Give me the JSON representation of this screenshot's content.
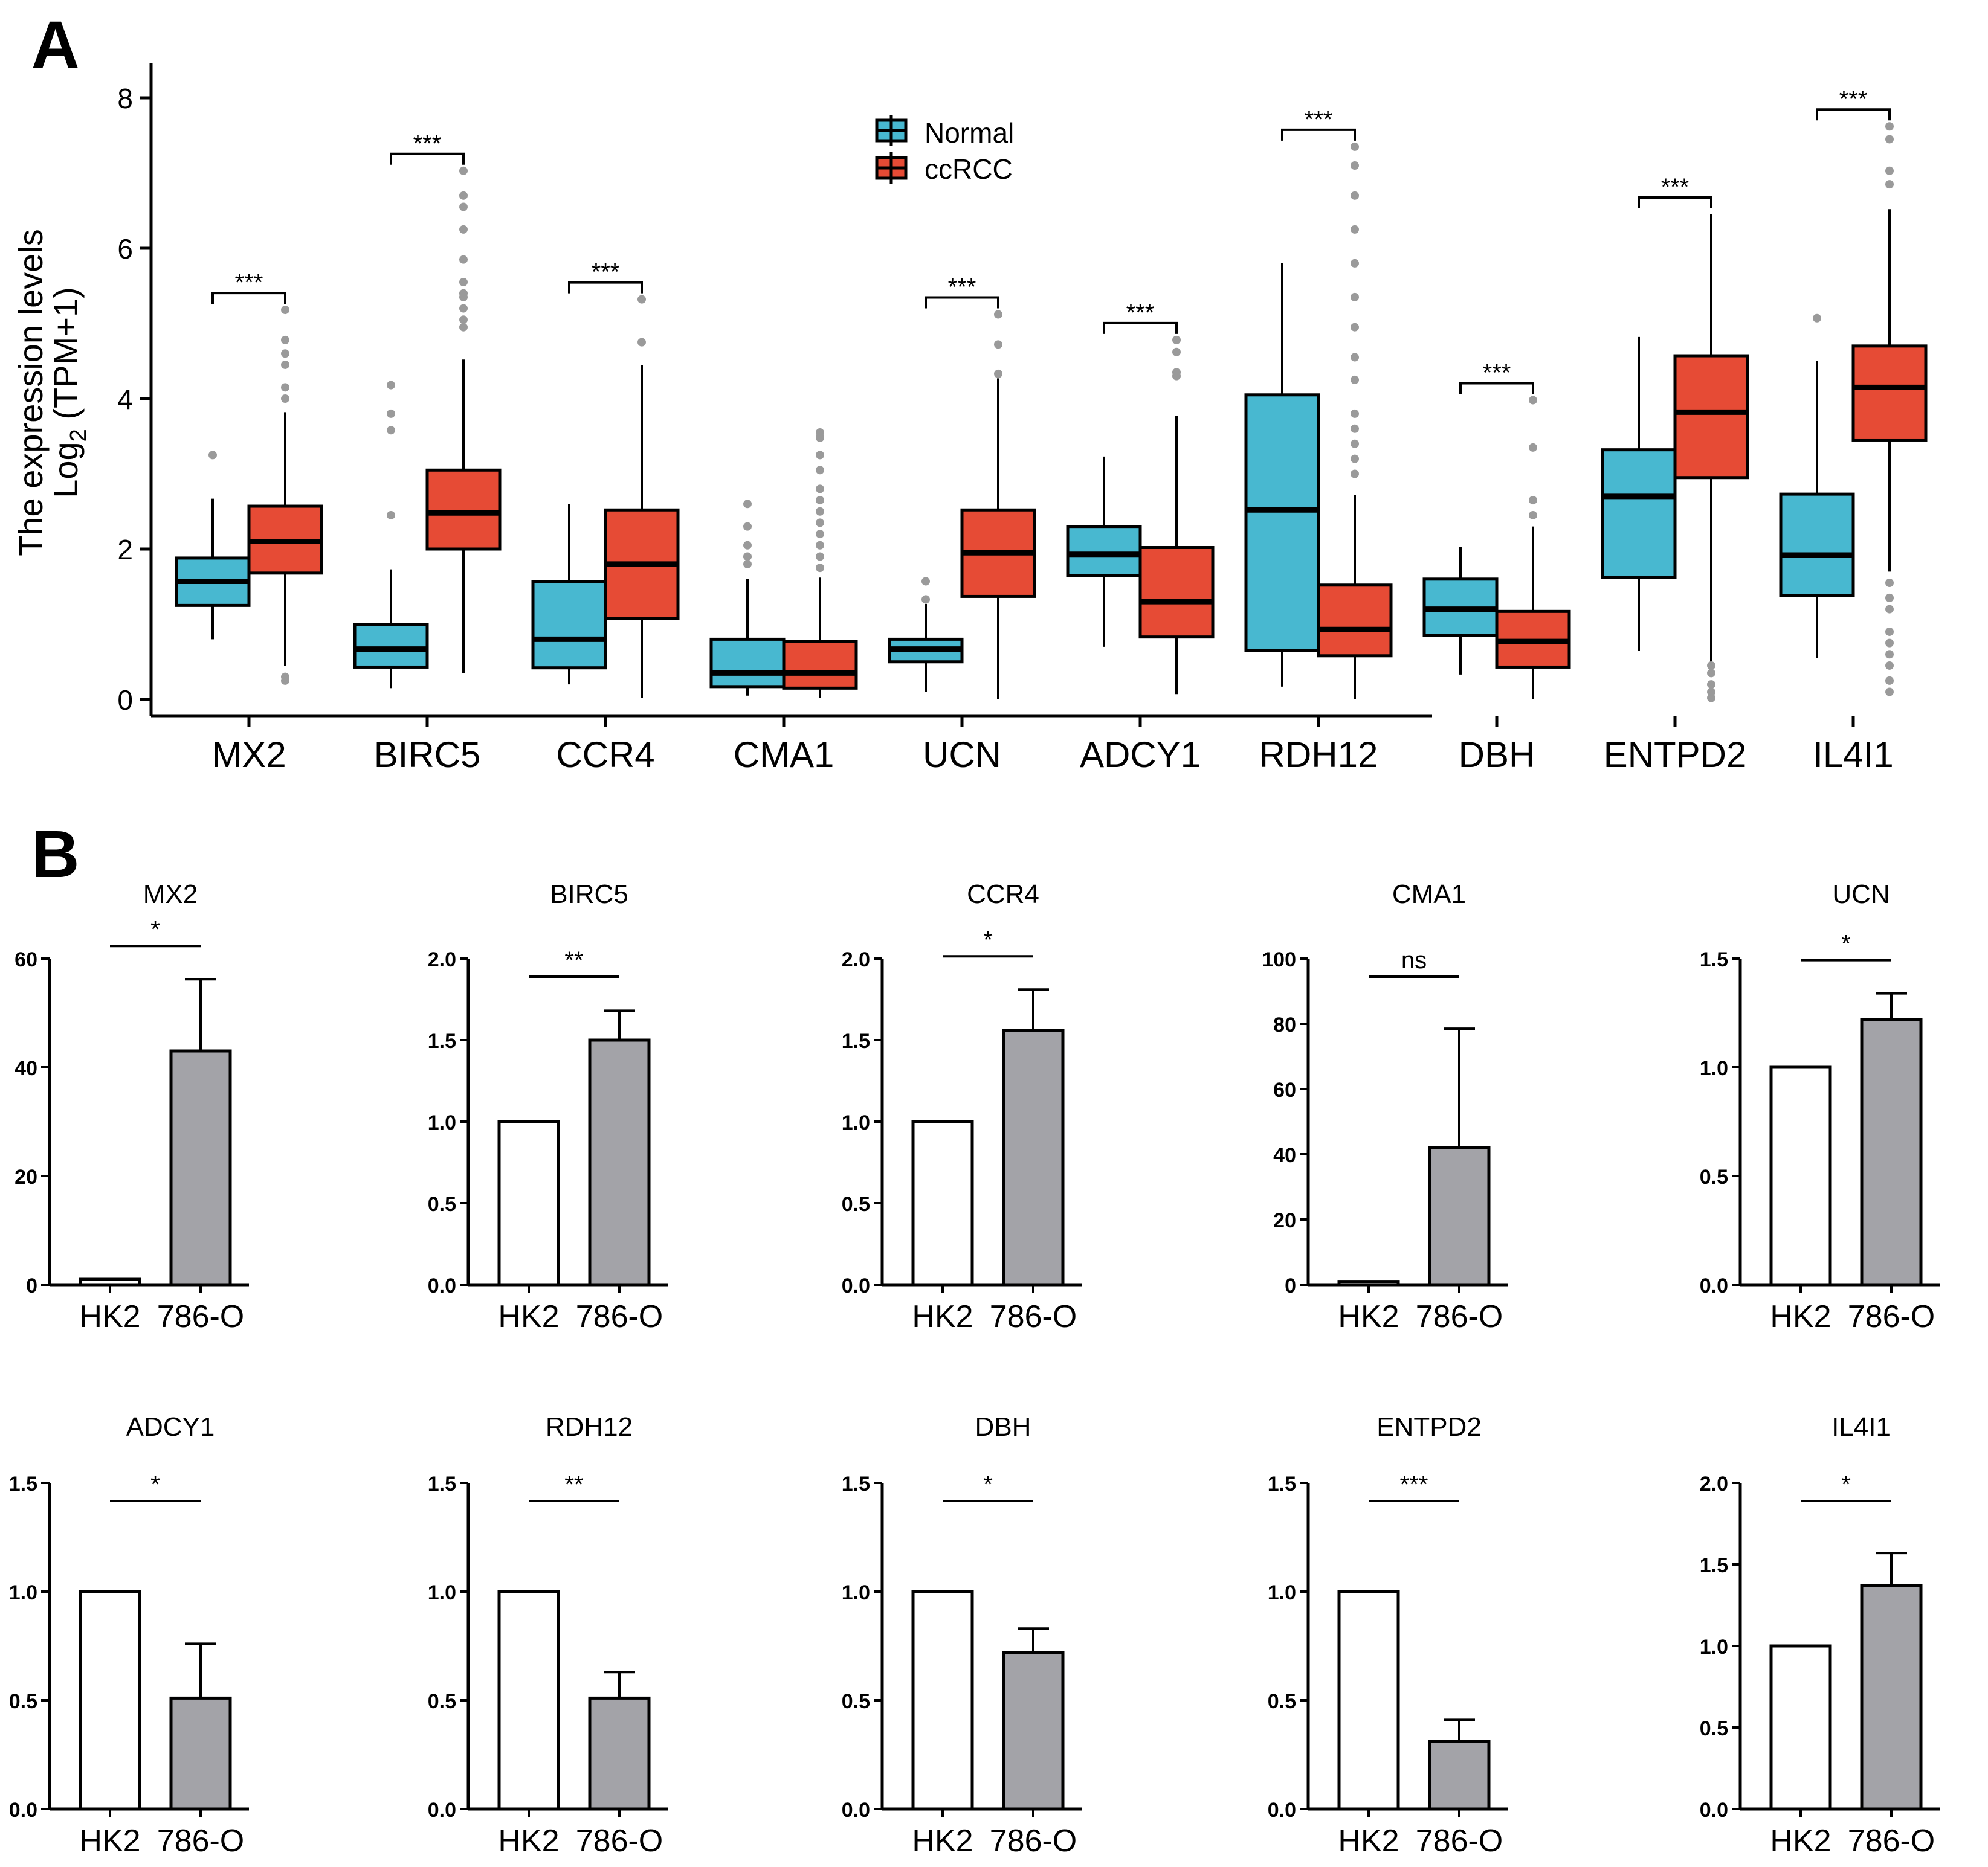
{
  "panel_labels": {
    "a": "A",
    "b": "B"
  },
  "colors": {
    "normal": "#48B8D0",
    "ccrcc": "#E64B35",
    "outlier": "#9A9A9A",
    "bar_hk2": "#FFFFFF",
    "bar_786o": "#A3A3A8"
  },
  "chart_data": [
    {
      "type": "box",
      "ylabel_line1": "The expression levels",
      "ylabel_line2_main": "Log",
      "ylabel_line2_sub": "2",
      "ylabel_line2_rest": " (TPM+1)",
      "ylim": [
        0,
        8.5
      ],
      "yticks": [
        0,
        2,
        4,
        6,
        8
      ],
      "legend": [
        {
          "name": "Normal",
          "color": "#48B8D0"
        },
        {
          "name": "ccRCC",
          "color": "#E64B35"
        }
      ],
      "categories": [
        "MX2",
        "BIRC5",
        "CCR4",
        "CMA1",
        "UCN",
        "ADCY1",
        "RDH12",
        "DBH",
        "ENTPD2",
        "IL4I1"
      ],
      "significance": [
        "***",
        "***",
        "***",
        "",
        "***",
        "***",
        "***",
        "***",
        "***",
        "***"
      ],
      "series": [
        {
          "name": "Normal",
          "boxes": [
            {
              "min": 0.8,
              "q1": 1.25,
              "med": 1.57,
              "q3": 1.88,
              "max": 2.67,
              "outliers": [
                3.25
              ]
            },
            {
              "min": 0.15,
              "q1": 0.43,
              "med": 0.67,
              "q3": 1.0,
              "max": 1.73,
              "outliers": [
                2.45,
                3.58,
                3.8,
                4.18
              ]
            },
            {
              "min": 0.2,
              "q1": 0.42,
              "med": 0.8,
              "q3": 1.57,
              "max": 2.6,
              "outliers": []
            },
            {
              "min": 0.05,
              "q1": 0.17,
              "med": 0.35,
              "q3": 0.8,
              "max": 1.6,
              "outliers": [
                1.8,
                1.9,
                2.05,
                2.3,
                2.6
              ]
            },
            {
              "min": 0.1,
              "q1": 0.5,
              "med": 0.67,
              "q3": 0.8,
              "max": 1.27,
              "outliers": [
                1.33,
                1.57
              ]
            },
            {
              "min": 0.7,
              "q1": 1.65,
              "med": 1.93,
              "q3": 2.3,
              "max": 3.23,
              "outliers": []
            },
            {
              "min": 0.17,
              "q1": 0.65,
              "med": 2.52,
              "q3": 4.05,
              "max": 5.8,
              "outliers": []
            },
            {
              "min": 0.33,
              "q1": 0.85,
              "med": 1.2,
              "q3": 1.6,
              "max": 2.03,
              "outliers": []
            },
            {
              "min": 0.65,
              "q1": 1.62,
              "med": 2.7,
              "q3": 3.32,
              "max": 4.82,
              "outliers": []
            },
            {
              "min": 0.55,
              "q1": 1.38,
              "med": 1.92,
              "q3": 2.73,
              "max": 4.5,
              "outliers": [
                5.07
              ]
            }
          ]
        },
        {
          "name": "ccRCC",
          "boxes": [
            {
              "min": 0.45,
              "q1": 1.68,
              "med": 2.1,
              "q3": 2.57,
              "max": 3.82,
              "outliers": [
                0.25,
                0.3,
                4.0,
                4.15,
                4.45,
                4.6,
                4.78,
                5.18
              ]
            },
            {
              "min": 0.35,
              "q1": 2.0,
              "med": 2.48,
              "q3": 3.05,
              "max": 4.52,
              "outliers": [
                4.95,
                5.05,
                5.2,
                5.35,
                5.4,
                5.55,
                5.85,
                6.25,
                6.55,
                6.7,
                7.03
              ]
            },
            {
              "min": 0.02,
              "q1": 1.08,
              "med": 1.8,
              "q3": 2.52,
              "max": 4.45,
              "outliers": [
                4.75,
                5.32
              ]
            },
            {
              "min": 0.02,
              "q1": 0.15,
              "med": 0.35,
              "q3": 0.77,
              "max": 1.62,
              "outliers": [
                1.75,
                1.9,
                2.05,
                2.2,
                2.35,
                2.5,
                2.65,
                2.8,
                3.05,
                3.25,
                3.48,
                3.55
              ]
            },
            {
              "min": 0.0,
              "q1": 1.37,
              "med": 1.95,
              "q3": 2.52,
              "max": 4.27,
              "outliers": [
                4.33,
                4.72,
                5.12
              ]
            },
            {
              "min": 0.07,
              "q1": 0.83,
              "med": 1.3,
              "q3": 2.02,
              "max": 3.77,
              "outliers": [
                4.3,
                4.35,
                4.62,
                4.78
              ]
            },
            {
              "min": 0.0,
              "q1": 0.58,
              "med": 0.93,
              "q3": 1.52,
              "max": 2.72,
              "outliers": [
                3.0,
                3.2,
                3.4,
                3.6,
                3.8,
                4.25,
                4.55,
                4.95,
                5.35,
                5.8,
                6.25,
                6.7,
                7.1,
                7.35
              ]
            },
            {
              "min": 0.0,
              "q1": 0.43,
              "med": 0.77,
              "q3": 1.17,
              "max": 2.3,
              "outliers": [
                2.45,
                2.65,
                3.35,
                3.98
              ]
            },
            {
              "min": 0.42,
              "q1": 2.95,
              "med": 3.82,
              "q3": 4.57,
              "max": 6.45,
              "outliers": [
                0.02,
                0.1,
                0.2,
                0.35,
                0.45
              ]
            },
            {
              "min": 1.7,
              "q1": 3.45,
              "med": 4.15,
              "q3": 4.7,
              "max": 6.52,
              "outliers": [
                0.1,
                0.25,
                0.45,
                0.6,
                0.75,
                0.9,
                1.2,
                1.35,
                1.55,
                6.85,
                7.03,
                7.45,
                7.62
              ]
            }
          ]
        }
      ]
    },
    {
      "type": "bar",
      "categories": [
        "HK2",
        "786-O"
      ],
      "panels": [
        {
          "title": "MX2",
          "ymax": 60,
          "yticks": [
            0,
            20,
            40,
            60
          ],
          "yticks_label": [
            "0",
            "20",
            "40",
            "60"
          ],
          "values": [
            1.0,
            43.0
          ],
          "err": [
            0,
            13.2
          ],
          "sig": "*"
        },
        {
          "title": "BIRC5",
          "ymax": 2.0,
          "yticks": [
            0,
            0.5,
            1,
            1.5,
            2
          ],
          "yticks_label": [
            "0.0",
            "0.5",
            "1.0",
            "1.5",
            "2.0"
          ],
          "values": [
            1.0,
            1.5
          ],
          "err": [
            0,
            0.18
          ],
          "sig": "**"
        },
        {
          "title": "CCR4",
          "ymax": 2.0,
          "yticks": [
            0,
            0.5,
            1,
            1.5,
            2
          ],
          "yticks_label": [
            "0.0",
            "0.5",
            "1.0",
            "1.5",
            "2.0"
          ],
          "values": [
            1.0,
            1.56
          ],
          "err": [
            0,
            0.25
          ],
          "sig": "*"
        },
        {
          "title": "CMA1",
          "ymax": 100,
          "yticks": [
            0,
            20,
            40,
            60,
            80,
            100
          ],
          "yticks_label": [
            "0",
            "20",
            "40",
            "60",
            "80",
            "100"
          ],
          "values": [
            1.0,
            42.0
          ],
          "err": [
            0,
            36.5
          ],
          "sig": "ns"
        },
        {
          "title": "UCN",
          "ymax": 1.5,
          "yticks": [
            0,
            0.5,
            1,
            1.5
          ],
          "yticks_label": [
            "0.0",
            "0.5",
            "1.0",
            "1.5"
          ],
          "values": [
            1.0,
            1.22
          ],
          "err": [
            0,
            0.12
          ],
          "sig": "*"
        },
        {
          "title": "ADCY1",
          "ymax": 1.5,
          "yticks": [
            0,
            0.5,
            1,
            1.5
          ],
          "yticks_label": [
            "0.0",
            "0.5",
            "1.0",
            "1.5"
          ],
          "values": [
            1.0,
            0.51
          ],
          "err": [
            0,
            0.25
          ],
          "sig": "*"
        },
        {
          "title": "RDH12",
          "ymax": 1.5,
          "yticks": [
            0,
            0.5,
            1,
            1.5
          ],
          "yticks_label": [
            "0.0",
            "0.5",
            "1.0",
            "1.5"
          ],
          "values": [
            1.0,
            0.51
          ],
          "err": [
            0,
            0.12
          ],
          "sig": "**"
        },
        {
          "title": "DBH",
          "ymax": 1.5,
          "yticks": [
            0,
            0.5,
            1,
            1.5
          ],
          "yticks_label": [
            "0.0",
            "0.5",
            "1.0",
            "1.5"
          ],
          "values": [
            1.0,
            0.72
          ],
          "err": [
            0,
            0.11
          ],
          "sig": "*"
        },
        {
          "title": "ENTPD2",
          "ymax": 1.5,
          "yticks": [
            0,
            0.5,
            1,
            1.5
          ],
          "yticks_label": [
            "0.0",
            "0.5",
            "1.0",
            "1.5"
          ],
          "values": [
            1.0,
            0.31
          ],
          "err": [
            0,
            0.1
          ],
          "sig": "***"
        },
        {
          "title": "IL4I1",
          "ymax": 2.0,
          "yticks": [
            0,
            0.5,
            1,
            1.5,
            2
          ],
          "yticks_label": [
            "0.0",
            "0.5",
            "1.0",
            "1.5",
            "2.0"
          ],
          "values": [
            1.0,
            1.37
          ],
          "err": [
            0,
            0.2
          ],
          "sig": "*"
        }
      ]
    }
  ]
}
